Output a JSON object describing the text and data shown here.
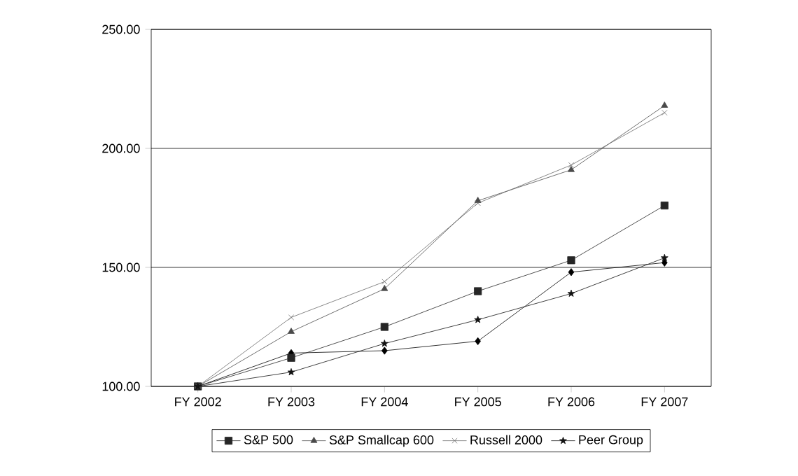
{
  "chart_data": {
    "type": "line",
    "categories": [
      "FY 2002",
      "FY 2003",
      "FY 2004",
      "FY 2005",
      "FY 2006",
      "FY 2007"
    ],
    "series": [
      {
        "color": "#000000",
        "marker": "diamond",
        "values": [
          100,
          114,
          115,
          119,
          148,
          152
        ]
      },
      {
        "name": "S&P 500",
        "color": "#262626",
        "marker": "square",
        "values": [
          100,
          112,
          125,
          140,
          153,
          176
        ]
      },
      {
        "name": "S&P Smallcap 600",
        "color": "#4a4a4a",
        "marker": "triangle",
        "values": [
          100,
          123,
          141,
          178,
          191,
          218
        ]
      },
      {
        "name": "Russell 2000",
        "color": "#6a6a6a",
        "marker": "cross",
        "values": [
          100,
          129,
          144,
          177,
          193,
          215
        ]
      },
      {
        "name": "Peer Group",
        "color": "#121212",
        "marker": "star",
        "values": [
          100,
          106,
          118,
          128,
          139,
          154
        ]
      }
    ],
    "ylim": [
      100,
      250
    ],
    "yticks": [
      {
        "value": 100,
        "label": "100.00"
      },
      {
        "value": 150,
        "label": "150.00"
      },
      {
        "value": 200,
        "label": "200.00"
      },
      {
        "value": 250,
        "label": "250.00"
      }
    ],
    "grid": "y",
    "legend": "bottom"
  }
}
